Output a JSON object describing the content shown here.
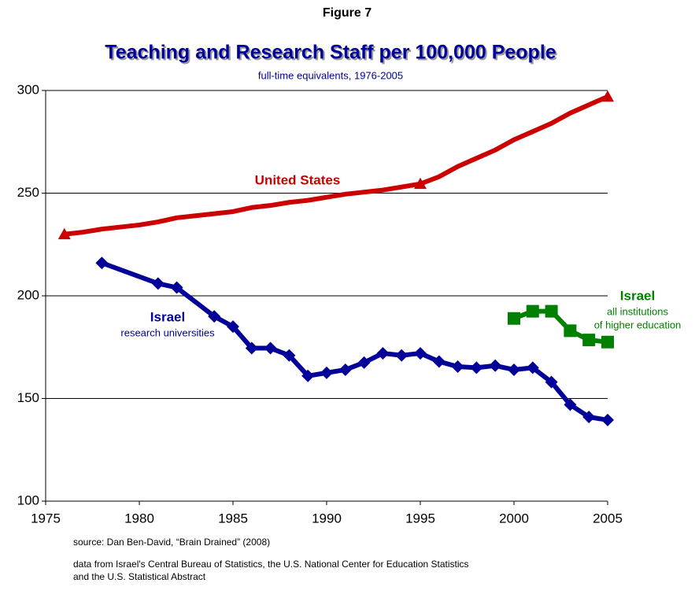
{
  "chart_data": {
    "type": "line",
    "figure_label": "Figure 7",
    "title": "Teaching and Research Staff per 100,000 People",
    "subtitle": "full-time equivalents, 1976-2005",
    "xlim": [
      1975,
      2005
    ],
    "xticks": [
      1975,
      1980,
      1985,
      1990,
      1995,
      2000,
      2005
    ],
    "ylim": [
      100,
      300
    ],
    "yticks": [
      100,
      150,
      200,
      250,
      300
    ],
    "grid": true,
    "series": [
      {
        "name": "United States",
        "color": "#cc0000",
        "marker": "triangle",
        "marker_x": [
          1976,
          1995,
          2005
        ],
        "x": [
          1976,
          1977,
          1978,
          1979,
          1980,
          1981,
          1982,
          1983,
          1984,
          1985,
          1986,
          1987,
          1988,
          1989,
          1990,
          1991,
          1992,
          1993,
          1994,
          1995,
          1996,
          1997,
          1998,
          1999,
          2000,
          2001,
          2002,
          2003,
          2004,
          2005
        ],
        "values": [
          230,
          231,
          232.5,
          233.5,
          234.5,
          236,
          238,
          239,
          240,
          241,
          243,
          244,
          245.5,
          246.5,
          248,
          249.5,
          250.5,
          251.5,
          253,
          254.5,
          258,
          263,
          267,
          271,
          276,
          280,
          284,
          289,
          293,
          297
        ]
      },
      {
        "name": "Israel",
        "sublabel": [
          "research universities"
        ],
        "color": "#000099",
        "marker": "diamond",
        "x": [
          1978,
          1981,
          1982,
          1984,
          1985,
          1986,
          1987,
          1988,
          1989,
          1990,
          1991,
          1992,
          1993,
          1994,
          1995,
          1996,
          1997,
          1998,
          1999,
          2000,
          2001,
          2002,
          2003,
          2004,
          2005
        ],
        "values": [
          216,
          206,
          204,
          190,
          185,
          174.5,
          174.5,
          171,
          161,
          162.5,
          164,
          167.5,
          172,
          171,
          172,
          168,
          165.5,
          165,
          166,
          164,
          165,
          158,
          147,
          141,
          139.5
        ]
      },
      {
        "name": "Israel",
        "sublabel": [
          "all institutions",
          "of higher education"
        ],
        "color": "#008000",
        "marker": "square",
        "x": [
          2000,
          2001,
          2002,
          2003,
          2004,
          2005
        ],
        "values": [
          189,
          192.5,
          192.5,
          183,
          178.5,
          177.5
        ]
      }
    ],
    "source": "source: Dan Ben-David, “Brain Drained” (2008)",
    "notes": [
      "data from Israel's Central Bureau of Statistics, the U.S. National Center for Education Statistics",
      "and the U.S. Statistical Abstract"
    ]
  }
}
